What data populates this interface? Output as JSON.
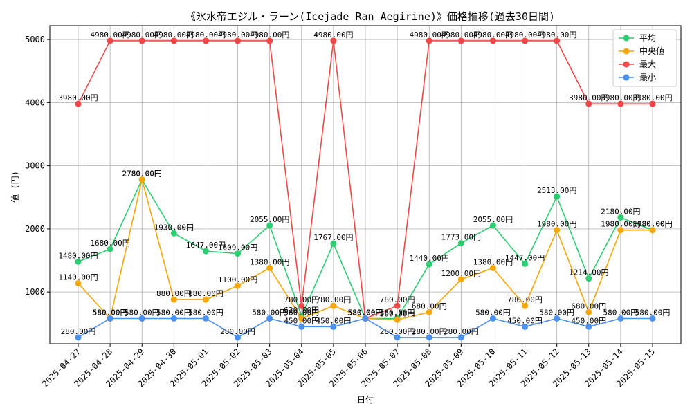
{
  "chart_data": {
    "type": "line",
    "title": "《氷水帝エジル・ラーン(Icejade Ran Aegirine)》価格推移(過去30日間)",
    "xlabel": "日付",
    "ylabel": "値 (円)",
    "ylim": [
      180,
      5220
    ],
    "yticks": [
      1000,
      2000,
      3000,
      4000,
      5000
    ],
    "grid": true,
    "legend_position": "top-right",
    "categories": [
      "2025-04-27",
      "2025-04-28",
      "2025-04-29",
      "2025-04-30",
      "2025-05-01",
      "2025-05-02",
      "2025-05-03",
      "2025-05-04",
      "2025-05-05",
      "2025-05-06",
      "2025-05-07",
      "2025-05-08",
      "2025-05-09",
      "2025-05-10",
      "2025-05-11",
      "2025-05-12",
      "2025-05-13",
      "2025-05-14",
      "2025-05-15"
    ],
    "series": [
      {
        "name": "平均",
        "color": "#2ecc71",
        "values": [
          1480,
          1680,
          2780,
          1930,
          1647,
          1609,
          2055,
          620,
          1767,
          580,
          580,
          1440,
          1773,
          2055,
          1447,
          2513,
          1214,
          2180,
          1980
        ],
        "labels": [
          "1480.00円",
          "1680.00円",
          "2780.00円",
          "1930.00円",
          "1647.00円",
          "1609.00円",
          "2055.00円",
          "620.00円",
          "1767.00円",
          "580.00円",
          "580.00円",
          "1440.00円",
          "1773.00円",
          "2055.00円",
          "1447.00円",
          "2513.00円",
          "1214.00円",
          "2180.00円",
          "1980.00円"
        ]
      },
      {
        "name": "中央値",
        "color": "#f5a70a",
        "values": [
          1140,
          580,
          2780,
          880,
          880,
          1100,
          1380,
          580,
          780,
          580,
          560,
          680,
          1200,
          1380,
          780,
          1980,
          680,
          1980,
          1980
        ],
        "labels": [
          "1140.00円",
          "580.00円",
          "2780.00円",
          "880.00円",
          "880.00円",
          "1100.00円",
          "1380.00円",
          "580.00円",
          "780.00円",
          "580.00円",
          "560.00円",
          "680.00円",
          "1200.00円",
          "1380.00円",
          "780.00円",
          "1980.00円",
          "680.00円",
          "1980.00円",
          "1980.00円"
        ]
      },
      {
        "name": "最大",
        "color": "#f04848",
        "values": [
          3980,
          4980,
          4980,
          4980,
          4980,
          4980,
          4980,
          780,
          4980,
          580,
          780,
          4980,
          4980,
          4980,
          4980,
          4980,
          3980,
          3980,
          3980
        ],
        "labels": [
          "3980.00円",
          "4980.00円",
          "4980.00円",
          "4980.00円",
          "4980.00円",
          "4980.00円",
          "4980.00円",
          "780.00円",
          "4980.00円",
          "580.00円",
          "780.00円",
          "4980.00円",
          "4980.00円",
          "4980.00円",
          "4980.00円",
          "4980.00円",
          "3980.00円",
          "3980.00円",
          "3980.00円"
        ]
      },
      {
        "name": "最小",
        "color": "#4a90f0",
        "values": [
          280,
          580,
          580,
          580,
          580,
          280,
          580,
          450,
          450,
          580,
          280,
          280,
          280,
          580,
          450,
          580,
          450,
          580,
          580
        ],
        "labels": [
          "280.00円",
          "580.00円",
          "580.00円",
          "580.00円",
          "580.00円",
          "280.00円",
          "580.00円",
          "450.00円",
          "450.00円",
          "580.00円",
          "280.00円",
          "280.00円",
          "280.00円",
          "580.00円",
          "450.00円",
          "580.00円",
          "450.00円",
          "580.00円",
          "580.00円"
        ]
      }
    ]
  }
}
